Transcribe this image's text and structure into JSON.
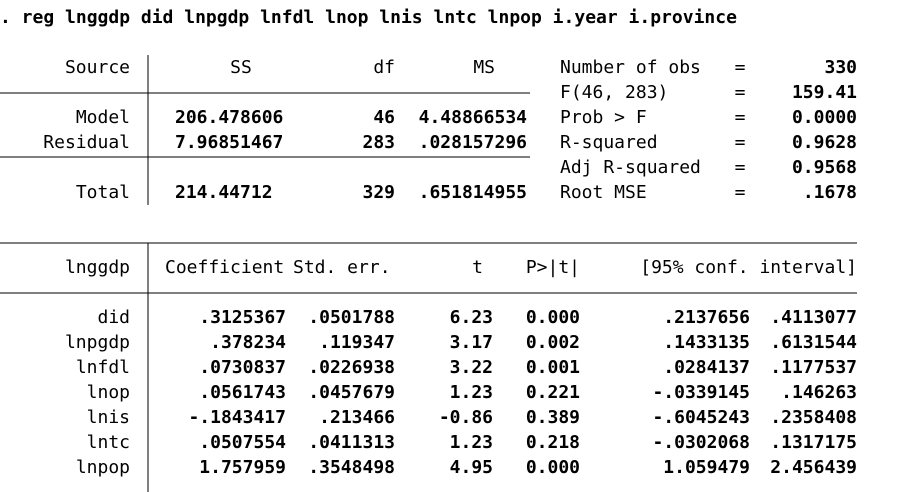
{
  "command": ". reg lnggdp did lnpgdp lnfdl lnop lnis lntc lnpop i.year i.province",
  "anova": {
    "headers": [
      "Source",
      "SS",
      "df",
      "MS"
    ],
    "rows": [
      [
        "Model",
        "206.478606",
        "46",
        "4.48866534"
      ],
      [
        "Residual",
        "7.96851467",
        "283",
        ".028157296"
      ],
      [
        "Total",
        "214.44712",
        "329",
        ".651814955"
      ]
    ]
  },
  "stats": [
    [
      "Number of obs",
      "=",
      "330"
    ],
    [
      "F(46, 283)",
      "=",
      "159.41"
    ],
    [
      "Prob > F",
      "=",
      "0.0000"
    ],
    [
      "R-squared",
      "=",
      "0.9628"
    ],
    [
      "Adj R-squared",
      "=",
      "0.9568"
    ],
    [
      "Root MSE",
      "=",
      ".1678"
    ]
  ],
  "coef_table": {
    "headers": [
      "lnggdp",
      "Coefficient",
      "Std. err.",
      "t",
      "P>|t|",
      "[95% conf. interval]"
    ],
    "rows": [
      [
        "did",
        ".3125367",
        ".0501788",
        "6.23",
        "0.000",
        ".2137656",
        ".4113077"
      ],
      [
        "lnpgdp",
        ".378234",
        ".119347",
        "3.17",
        "0.002",
        ".1433135",
        ".6131544"
      ],
      [
        "lnfdl",
        ".0730837",
        ".0226938",
        "3.22",
        "0.001",
        ".0284137",
        ".1177537"
      ],
      [
        "lnop",
        ".0561743",
        ".0457679",
        "1.23",
        "0.221",
        "-.0339145",
        ".146263"
      ],
      [
        "lnis",
        "-.1843417",
        ".213466",
        "-0.86",
        "0.389",
        "-.6045243",
        ".2358408"
      ],
      [
        "lntc",
        ".0507554",
        ".0411313",
        "1.23",
        "0.218",
        "-.0302068",
        ".1317175"
      ],
      [
        "lnpop",
        "1.757959",
        ".3548498",
        "4.95",
        "0.000",
        "1.059479",
        "2.456439"
      ]
    ]
  }
}
